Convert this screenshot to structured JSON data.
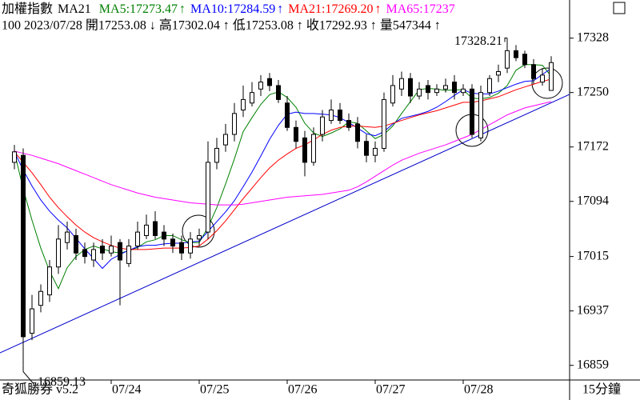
{
  "chart_data": {
    "type": "candlestick",
    "header": {
      "name": "加權指數",
      "ma_label": "MA21",
      "info": "100 2023/07/28 開17253.08 ↓ 高17302.04 ↑ 低17253.08 ↑ 收17292.93 ↑ 量547344 ↑",
      "arrow": "↑"
    },
    "footer_left": "奇狐勝券 v5.2",
    "period": "15分鐘",
    "categories": [
      null,
      null,
      null,
      null,
      null,
      null,
      null,
      null,
      null,
      null,
      null,
      "07/24",
      null,
      null,
      null,
      null,
      null,
      null,
      null,
      null,
      null,
      "07/25",
      null,
      null,
      null,
      null,
      null,
      null,
      null,
      null,
      null,
      "07/26",
      null,
      null,
      null,
      null,
      null,
      null,
      null,
      null,
      null,
      "07/27",
      null,
      null,
      null,
      null,
      null,
      null,
      null,
      null,
      null,
      "07/28",
      null,
      null,
      null,
      null,
      null,
      null,
      null,
      null,
      null,
      null
    ],
    "open": [
      17150,
      17160,
      16905,
      16945,
      16960,
      17000,
      17035,
      17045,
      17025,
      17010,
      17030,
      17020,
      17035,
      17005,
      17030,
      17045,
      17065,
      17050,
      17040,
      17035,
      17020,
      17040,
      17050,
      17150,
      17175,
      17190,
      17225,
      17235,
      17255,
      17270,
      17260,
      17235,
      17200,
      17185,
      17150,
      17190,
      17210,
      17225,
      17210,
      17205,
      17180,
      17160,
      17170,
      17235,
      17255,
      17270,
      17245,
      17260,
      17250,
      17255,
      17265,
      17250,
      17255,
      17185,
      17250,
      17275,
      17285,
      17310,
      17305,
      17290,
      17265,
      17253.08
    ],
    "high": [
      17175,
      17170,
      16960,
      16975,
      17010,
      17060,
      17065,
      17055,
      17035,
      17035,
      17040,
      17045,
      17040,
      17040,
      17065,
      17075,
      17080,
      17060,
      17048,
      17045,
      17050,
      17055,
      17180,
      17185,
      17205,
      17235,
      17260,
      17265,
      17275,
      17278,
      17268,
      17245,
      17210,
      17195,
      17200,
      17225,
      17240,
      17235,
      17220,
      17215,
      17190,
      17180,
      17250,
      17275,
      17280,
      17278,
      17265,
      17268,
      17262,
      17270,
      17275,
      17262,
      17262,
      17260,
      17275,
      17290,
      17328.21,
      17318,
      17310,
      17298,
      17285,
      17302.04
    ],
    "low": [
      17140,
      16859.13,
      16895,
      16935,
      16950,
      16990,
      17025,
      17010,
      17005,
      17000,
      17010,
      17015,
      16945,
      17000,
      17025,
      17040,
      17040,
      17030,
      17020,
      17010,
      17012,
      17030,
      17040,
      17140,
      17165,
      17180,
      17215,
      17230,
      17245,
      17252,
      17235,
      17195,
      17170,
      17130,
      17145,
      17180,
      17205,
      17205,
      17195,
      17170,
      17150,
      17150,
      17165,
      17230,
      17245,
      17235,
      17240,
      17240,
      17245,
      17250,
      17240,
      17245,
      17185,
      17180,
      17245,
      17265,
      17278,
      17295,
      17285,
      17262,
      17260,
      17253.08
    ],
    "close": [
      17165,
      16900,
      16940,
      16965,
      17000,
      17040,
      17050,
      17020,
      17015,
      17025,
      17020,
      17030,
      17010,
      17030,
      17050,
      17060,
      17045,
      17040,
      17030,
      17020,
      17040,
      17045,
      17150,
      17170,
      17190,
      17220,
      17240,
      17250,
      17265,
      17260,
      17240,
      17200,
      17180,
      17150,
      17190,
      17215,
      17225,
      17210,
      17200,
      17180,
      17160,
      17170,
      17240,
      17260,
      17270,
      17245,
      17255,
      17250,
      17255,
      17260,
      17250,
      17255,
      17190,
      17250,
      17270,
      17280,
      17310,
      17300,
      17290,
      17270,
      17275,
      17292.93
    ],
    "indicators": [
      {
        "name": "MA5:17273.47",
        "color": "#008000",
        "values": [
          17165,
          17112,
          17067,
          17027,
          16994,
          16969,
          16999,
          17015,
          17025,
          17030,
          17026,
          17022,
          17020,
          17023,
          17028,
          17036,
          17039,
          17045,
          17045,
          17039,
          17035,
          17035,
          17057,
          17085,
          17119,
          17155,
          17194,
          17214,
          17233,
          17247,
          17251,
          17243,
          17229,
          17206,
          17192,
          17187,
          17192,
          17198,
          17208,
          17206,
          17195,
          17184,
          17190,
          17202,
          17220,
          17237,
          17254,
          17256,
          17255,
          17253,
          17254,
          17254,
          17242,
          17241,
          17243,
          17249,
          17260,
          17282,
          17290,
          17290,
          17289,
          17273.47
        ]
      },
      {
        "name": "MA10:17284.59",
        "color": "#0000ff",
        "values": [
          17165,
          17139,
          17116,
          17096,
          17080,
          17067,
          17056,
          17041,
          17026,
          17012,
          16998,
          17011,
          17018,
          17024,
          17029,
          17031,
          17031,
          17033,
          17034,
          17034,
          17036,
          17037,
          17051,
          17065,
          17079,
          17095,
          17115,
          17136,
          17159,
          17183,
          17203,
          17219,
          17222,
          17220,
          17220,
          17219,
          17218,
          17214,
          17207,
          17199,
          17191,
          17188,
          17194,
          17205,
          17213,
          17216,
          17219,
          17223,
          17229,
          17237,
          17246,
          17254,
          17249,
          17248,
          17248,
          17252,
          17257,
          17262,
          17266,
          17267,
          17276,
          17284.59
        ]
      },
      {
        "name": "MA21:17269.20",
        "color": "#ff0000",
        "values": [
          17165,
          17150,
          17135,
          17118,
          17100,
          17085,
          17072,
          17060,
          17050,
          17042,
          17036,
          17031,
          17027,
          17025,
          17025,
          17025,
          17026,
          17027,
          17027,
          17027,
          17028,
          17030,
          17040,
          17052,
          17066,
          17082,
          17098,
          17113,
          17128,
          17142,
          17153,
          17162,
          17170,
          17175,
          17182,
          17190,
          17196,
          17200,
          17202,
          17202,
          17201,
          17200,
          17202,
          17206,
          17210,
          17214,
          17218,
          17221,
          17224,
          17228,
          17232,
          17236,
          17236,
          17238,
          17241,
          17244,
          17249,
          17254,
          17258,
          17262,
          17266,
          17269.2
        ]
      },
      {
        "name": "MA65:17237",
        "color": "#ff00ff",
        "values": [
          17166,
          17163,
          17160,
          17156,
          17152,
          17148,
          17143,
          17138,
          17133,
          17128,
          17123,
          17118,
          17114,
          17110,
          17106,
          17103,
          17100,
          17098,
          17096,
          17094,
          17092,
          17091,
          17090,
          17089,
          17089,
          17089,
          17090,
          17092,
          17094,
          17096,
          17098,
          17100,
          17101,
          17102,
          17103,
          17104,
          17106,
          17108,
          17110,
          17115,
          17122,
          17130,
          17138,
          17146,
          17153,
          17158,
          17163,
          17167,
          17171,
          17175,
          17180,
          17185,
          17190,
          17197,
          17204,
          17211,
          17218,
          17223,
          17228,
          17231,
          17234,
          17237
        ]
      }
    ],
    "annotations": {
      "high_label": "17328.21",
      "low_label": "16859.13"
    },
    "ylim": [
      16838,
      17362
    ],
    "yticks": [
      16859,
      16937,
      17015,
      17094,
      17172,
      17250,
      17328
    ]
  }
}
